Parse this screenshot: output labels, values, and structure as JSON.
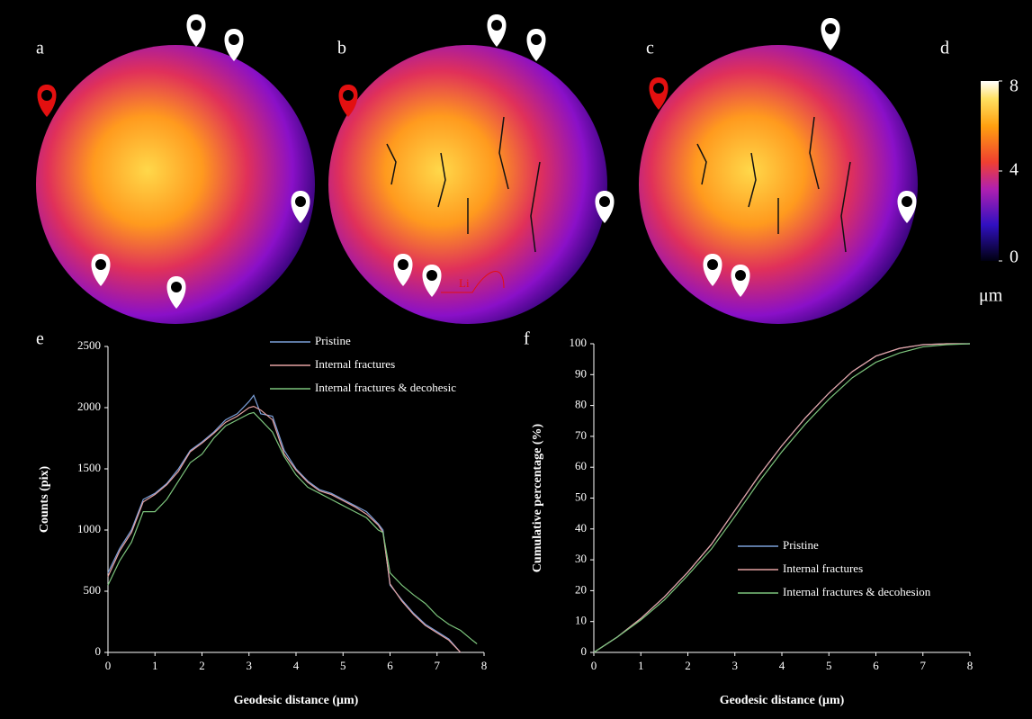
{
  "panels": {
    "a": "a",
    "b": "b",
    "c": "c",
    "li": "Li"
  },
  "colorbar": {
    "label": "d",
    "lim": [
      0,
      8
    ],
    "ticks": [
      0,
      4,
      8
    ],
    "unit": "μm"
  },
  "chart_data": [
    {
      "type": "line",
      "label": "e",
      "xlabel": "Geodesic distance (μm)",
      "ylabel": "Counts (pix)",
      "xlim": [
        0,
        8
      ],
      "xticks": [
        0,
        1,
        2,
        3,
        4,
        5,
        6,
        7,
        8
      ],
      "ylim": [
        0,
        2500
      ],
      "yticks": [
        0,
        500,
        1000,
        1500,
        2000,
        2500
      ],
      "x": [
        0,
        0.25,
        0.5,
        0.75,
        1,
        1.25,
        1.5,
        1.75,
        2,
        2.25,
        2.5,
        2.75,
        3,
        3.1,
        3.25,
        3.5,
        3.75,
        4,
        4.25,
        4.5,
        4.75,
        5,
        5.25,
        5.5,
        5.75,
        5.85,
        6,
        6.25,
        6.5,
        6.75,
        7,
        7.25,
        7.5,
        7.75,
        7.85
      ],
      "legend": "top-right",
      "series": [
        {
          "name": "Pristine",
          "color": "#7b9fd8",
          "values": [
            650,
            850,
            1000,
            1250,
            1300,
            1380,
            1500,
            1650,
            1720,
            1800,
            1900,
            1950,
            2050,
            2100,
            1950,
            1930,
            1650,
            1500,
            1400,
            1330,
            1300,
            1250,
            1200,
            1150,
            1050,
            1000,
            550,
            430,
            320,
            230,
            170,
            110,
            0,
            null,
            null
          ]
        },
        {
          "name": "Internal fractures",
          "color": "#e6a3a3",
          "values": [
            620,
            830,
            980,
            1230,
            1290,
            1370,
            1480,
            1640,
            1710,
            1790,
            1880,
            1930,
            2000,
            2010,
            1980,
            1900,
            1620,
            1490,
            1390,
            1320,
            1290,
            1240,
            1190,
            1130,
            1040,
            980,
            560,
            420,
            310,
            220,
            160,
            100,
            0,
            null,
            null
          ]
        },
        {
          "name": "Internal fractures & decohesic",
          "color": "#7cc47c",
          "values": [
            550,
            750,
            900,
            1150,
            1150,
            1250,
            1400,
            1550,
            1620,
            1750,
            1850,
            1900,
            1950,
            1960,
            1900,
            1800,
            1600,
            1450,
            1350,
            1300,
            1250,
            1200,
            1150,
            1100,
            1000,
            980,
            650,
            550,
            470,
            400,
            300,
            230,
            180,
            100,
            70
          ]
        }
      ]
    },
    {
      "type": "line",
      "label": "f",
      "xlabel": "Geodesic distance (μm)",
      "ylabel": "Cumulative percentage (%)",
      "xlim": [
        0,
        8
      ],
      "xticks": [
        0,
        1,
        2,
        3,
        4,
        5,
        6,
        7,
        8
      ],
      "ylim": [
        0,
        100
      ],
      "yticks": [
        0,
        10,
        20,
        30,
        40,
        50,
        60,
        70,
        80,
        90,
        100
      ],
      "x": [
        0,
        0.5,
        1,
        1.5,
        2,
        2.5,
        3,
        3.5,
        4,
        4.5,
        5,
        5.5,
        6,
        6.5,
        7,
        7.5,
        8
      ],
      "legend": "lower-right",
      "series": [
        {
          "name": "Pristine",
          "color": "#7b9fd8",
          "values": [
            0,
            5,
            11,
            18,
            26,
            35,
            46,
            57,
            67,
            76,
            84,
            91,
            96,
            98.5,
            99.7,
            100,
            100
          ]
        },
        {
          "name": "Internal fractures",
          "color": "#e6a3a3",
          "values": [
            0,
            5,
            11,
            18,
            26,
            35,
            46,
            57,
            67,
            76,
            84,
            91,
            96,
            98.5,
            99.7,
            100,
            100
          ]
        },
        {
          "name": "Internal fractures & decohesion",
          "color": "#7cc47c",
          "values": [
            0,
            5,
            10.5,
            17,
            25,
            33.5,
            44,
            55,
            65,
            74,
            82,
            89,
            94,
            97,
            99,
            99.7,
            100
          ]
        }
      ]
    }
  ]
}
